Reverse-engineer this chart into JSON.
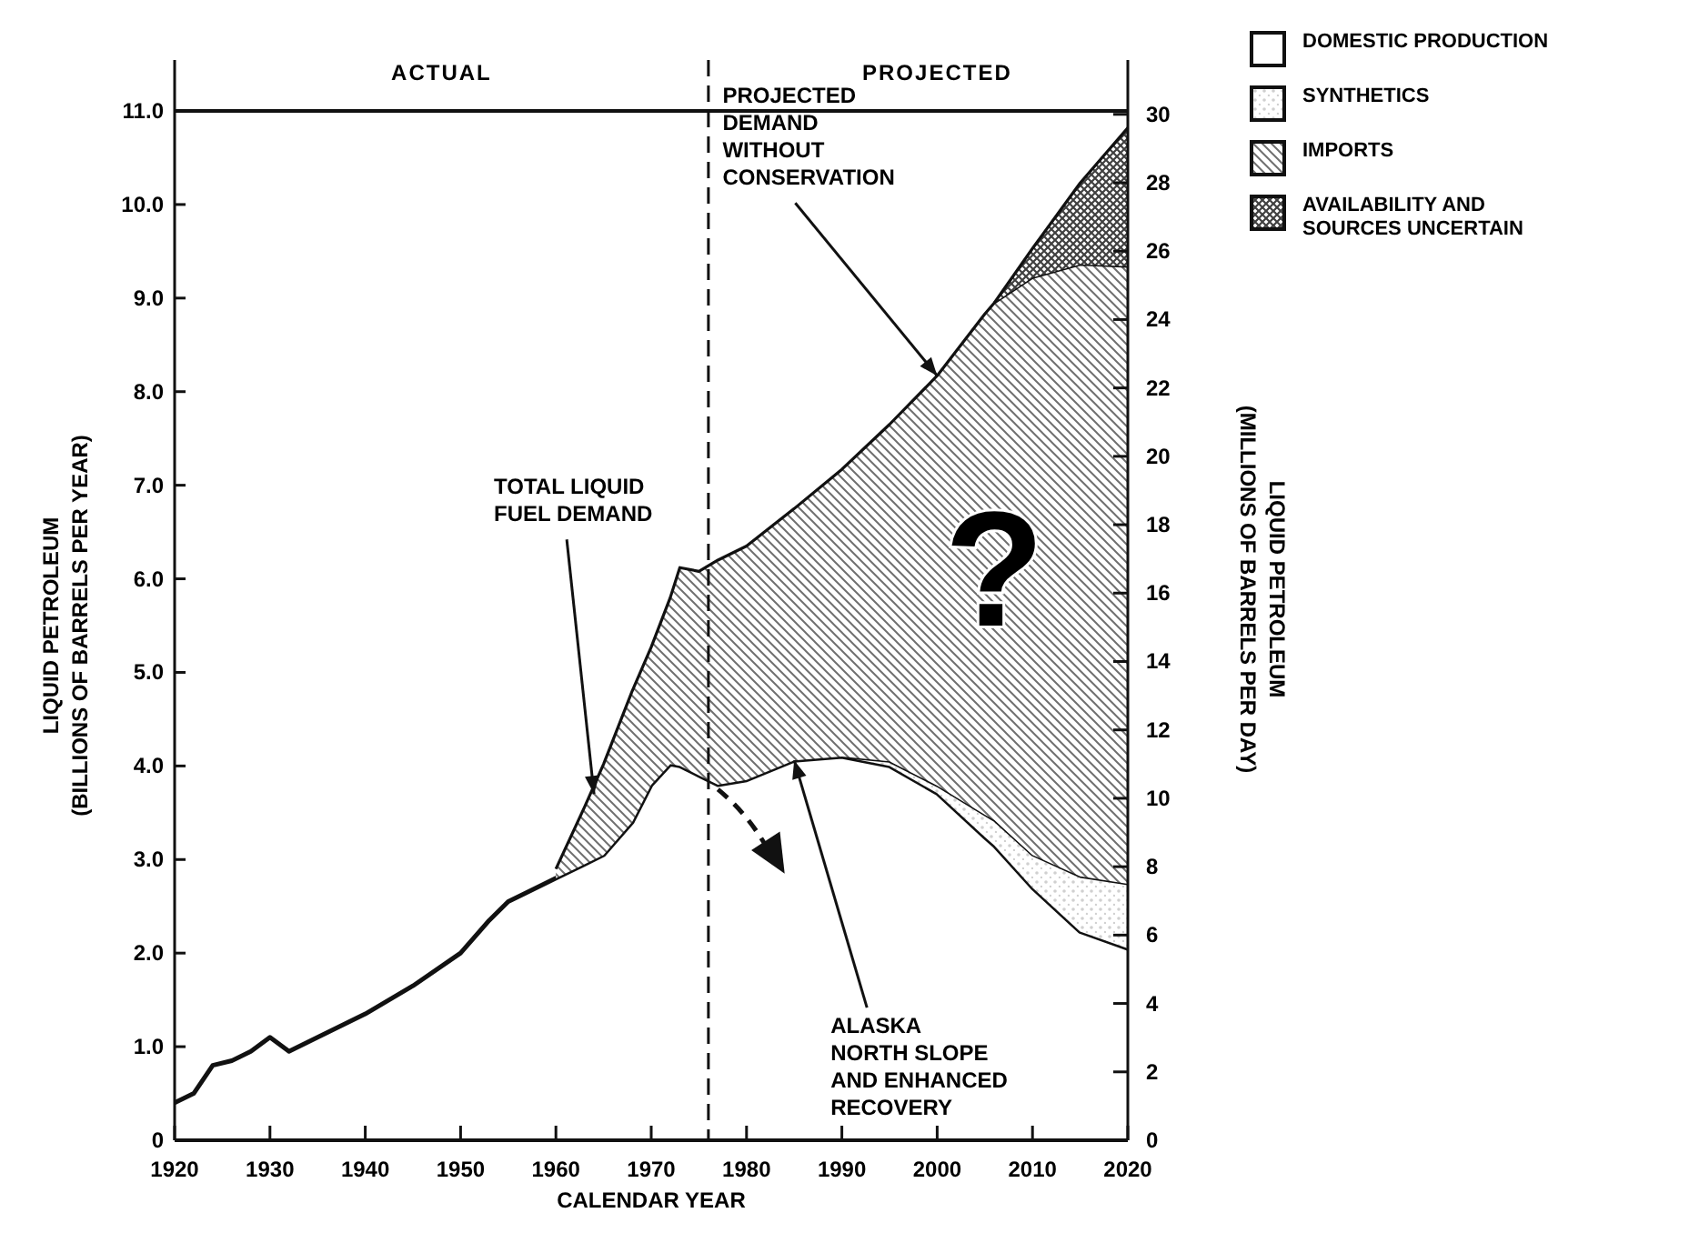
{
  "chart_data": {
    "type": "area",
    "stacked": true,
    "xlabel": "CALENDAR YEAR",
    "ylabel": "LIQUID PETROLEUM\n(BILLIONS OF BARRELS PER YEAR)",
    "y2label": "LIQUID PETROLEUM\n(MILLIONS OF BARRELS PER DAY)",
    "x": [
      1920,
      1922,
      1924,
      1926,
      1928,
      1930,
      1932,
      1935,
      1940,
      1945,
      1950,
      1953,
      1955,
      1957,
      1960,
      1963,
      1965,
      1968,
      1970,
      1972,
      1973,
      1975,
      1977,
      1980,
      1985,
      1990,
      1995,
      2000,
      2005,
      2006,
      2010,
      2015,
      2020
    ],
    "series": [
      {
        "name": "DOMESTIC PRODUCTION",
        "color": "#ffffff",
        "values": [
          0.4,
          0.5,
          0.8,
          0.85,
          0.95,
          1.1,
          0.95,
          1.1,
          1.35,
          1.65,
          2.0,
          2.35,
          2.55,
          2.65,
          2.8,
          2.95,
          3.05,
          3.4,
          3.8,
          4.02,
          4.0,
          3.9,
          3.8,
          3.85,
          4.06,
          4.1,
          4.0,
          3.71,
          3.24,
          3.15,
          2.7,
          2.23,
          2.05
        ]
      },
      {
        "name": "SYNTHETICS",
        "color": "#d0d0d0",
        "values": [
          null,
          null,
          null,
          null,
          null,
          null,
          null,
          null,
          null,
          null,
          null,
          null,
          null,
          null,
          null,
          null,
          null,
          null,
          null,
          null,
          null,
          null,
          null,
          null,
          null,
          0,
          0.05,
          0.08,
          0.24,
          0.27,
          0.35,
          0.59,
          0.69
        ]
      },
      {
        "name": "IMPORTS",
        "color": "#707070",
        "values": [
          null,
          null,
          null,
          null,
          null,
          null,
          null,
          null,
          null,
          null,
          null,
          null,
          null,
          null,
          0.1,
          0.61,
          0.97,
          1.4,
          1.47,
          1.78,
          2.12,
          2.18,
          2.4,
          2.5,
          2.69,
          3.07,
          3.6,
          4.38,
          5.35,
          5.53,
          6.17,
          6.54,
          6.6
        ]
      },
      {
        "name": "AVAILABILITY AND SOURCES UNCERTAIN",
        "color": "#404040",
        "values": [
          null,
          null,
          null,
          null,
          null,
          null,
          null,
          null,
          null,
          null,
          null,
          null,
          null,
          null,
          null,
          null,
          null,
          null,
          null,
          null,
          null,
          null,
          null,
          null,
          null,
          null,
          null,
          null,
          null,
          0,
          0.31,
          0.87,
          1.48
        ]
      }
    ],
    "xlim": [
      1920,
      2020
    ],
    "xticks": [
      1920,
      1930,
      1940,
      1950,
      1960,
      1970,
      1980,
      1990,
      2000,
      2010,
      2020
    ],
    "ylim": [
      0,
      11
    ],
    "yticks": [
      0,
      {
        "value": 1,
        "label": "1.0"
      },
      {
        "value": 2,
        "label": "2.0"
      },
      {
        "value": 3,
        "label": "3.0"
      },
      {
        "value": 4,
        "label": "4.0"
      },
      {
        "value": 5,
        "label": "5.0"
      },
      {
        "value": 6,
        "label": "6.0"
      },
      {
        "value": 7,
        "label": "7.0"
      },
      {
        "value": 8,
        "label": "8.0"
      },
      {
        "value": 9,
        "label": "9.0"
      },
      {
        "value": 10,
        "label": "10.0"
      },
      {
        "value": 11,
        "label": "11.0"
      }
    ],
    "y2lim": [
      0,
      30.1
    ],
    "y2ticks": [
      0,
      2,
      4,
      6,
      8,
      10,
      12,
      14,
      16,
      18,
      20,
      22,
      24,
      26,
      28,
      30
    ],
    "ref_lines": [
      {
        "axis": "x",
        "value": 1976,
        "line_style": "dashed"
      }
    ],
    "annotations": [
      {
        "text": "TOTAL LIQUID\nFUEL DEMAND",
        "x": 1964,
        "y": 3.7
      },
      {
        "text": "PROJECTED\nDEMAND\nWITHOUT\nCONSERVATION",
        "x": 2000,
        "y": 8.17
      },
      {
        "text": "ALASKA\nNORTH SLOPE\nAND ENHANCED\nRECOVERY",
        "x": 1985,
        "y": 4.06
      },
      "?",
      "ACTUAL",
      "PROJECTED"
    ],
    "legend": "top right",
    "grid": false
  }
}
